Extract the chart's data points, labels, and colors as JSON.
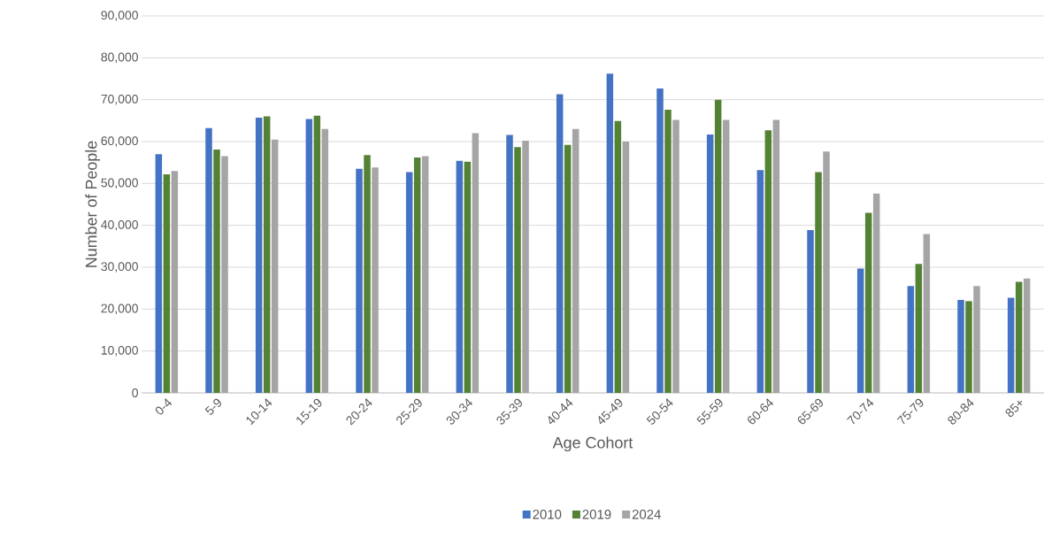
{
  "chart_data": {
    "type": "bar",
    "xlabel": "Age Cohort",
    "ylabel": "Number of People",
    "categories": [
      "0-4",
      "5-9",
      "10-14",
      "15-19",
      "20-24",
      "25-29",
      "30-34",
      "35-39",
      "40-44",
      "45-49",
      "50-54",
      "55-59",
      "60-64",
      "65-69",
      "70-74",
      "75-79",
      "80-84",
      "85+"
    ],
    "series": [
      {
        "name": "2010",
        "color": "#4472c4",
        "values": [
          57000,
          63200,
          65700,
          65400,
          53500,
          52700,
          55400,
          61600,
          71300,
          76200,
          72700,
          61700,
          53200,
          38900,
          29700,
          25500,
          22200,
          22700
        ]
      },
      {
        "name": "2019",
        "color": "#548235",
        "values": [
          52200,
          58100,
          66000,
          66200,
          56800,
          56200,
          55200,
          58700,
          59200,
          64900,
          67600,
          70000,
          62700,
          52700,
          43000,
          30800,
          21900,
          26500
        ]
      },
      {
        "name": "2024",
        "color": "#a5a5a5",
        "values": [
          53000,
          56500,
          60500,
          63000,
          53800,
          56500,
          62000,
          60200,
          63000,
          60000,
          65200,
          65200,
          65200,
          57600,
          47600,
          37900,
          25500,
          27300
        ]
      }
    ],
    "ylim": [
      0,
      90000
    ],
    "yticks": [
      {
        "value": 0,
        "label": "0"
      },
      {
        "value": 10000,
        "label": "10,000"
      },
      {
        "value": 20000,
        "label": "20,000"
      },
      {
        "value": 30000,
        "label": "30,000"
      },
      {
        "value": 40000,
        "label": "40,000"
      },
      {
        "value": 50000,
        "label": "50,000"
      },
      {
        "value": 60000,
        "label": "60,000"
      },
      {
        "value": 70000,
        "label": "70,000"
      },
      {
        "value": 80000,
        "label": "80,000"
      },
      {
        "value": 90000,
        "label": "90,000"
      }
    ],
    "grid": "y",
    "legend": "bottom"
  }
}
